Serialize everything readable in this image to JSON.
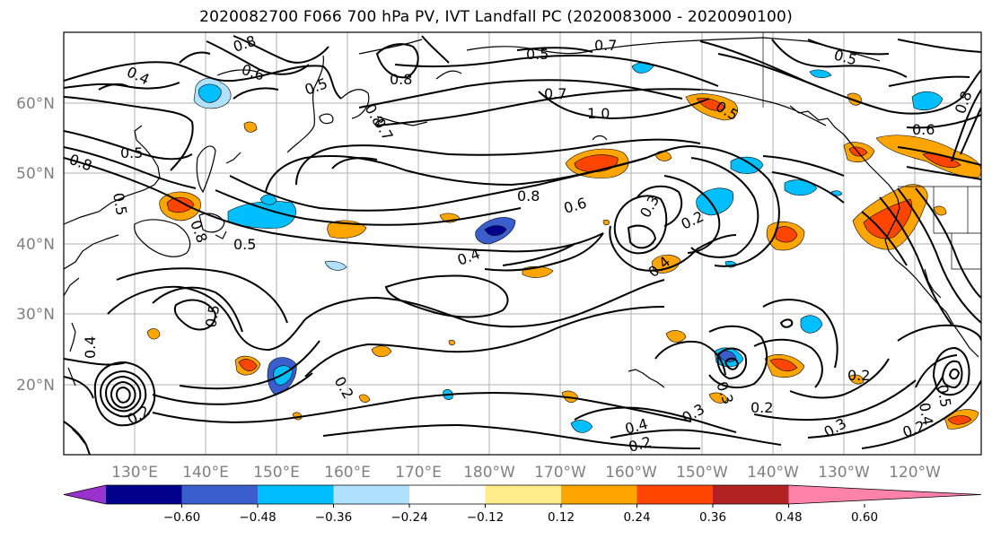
{
  "title": "2020082700 F066 700 hPa PV, IVT Landfall PC (2020083000 - 2020090100)",
  "map": {
    "lat_labels": [
      "60°N",
      "50°N",
      "40°N",
      "30°N",
      "20°N"
    ],
    "lon_labels": [
      "130°E",
      "140°E",
      "150°E",
      "160°E",
      "170°E",
      "180°W",
      "170°W",
      "160°W",
      "150°W",
      "140°W",
      "130°W",
      "120°W"
    ],
    "contour_line_color": "#000000",
    "coastline_color": "#000000",
    "contour_labels": [
      "0.8",
      "0.6",
      "0.4",
      "0.5",
      "0.8",
      "0.7",
      "0.5",
      "0.7",
      "1.0",
      "0.5",
      "0.8",
      "0.5",
      "0.8",
      "0.6",
      "0.8",
      "0.5",
      "0.8",
      "0.7",
      "0.5",
      "0.4",
      "0.3",
      "0.2",
      "0.4",
      "0.5",
      "0.4",
      "0.2",
      "0.2",
      "0.2",
      "0.4",
      "0.3",
      "0.2",
      "0.2",
      "0.3",
      "0.2",
      "0.4",
      "0.5",
      "0.8",
      "0.6",
      "0.5",
      "0.3"
    ]
  },
  "colorbar": {
    "colors": [
      "#9a32cd",
      "#00008b",
      "#3a5fcd",
      "#00bfff",
      "#b0e2ff",
      "#ffffff",
      "#ffec8b",
      "#ffa500",
      "#ff4500",
      "#b22222",
      "#ff82ab"
    ],
    "tick_labels": [
      "−0.60",
      "−0.48",
      "−0.36",
      "−0.24",
      "−0.12",
      "0.12",
      "0.24",
      "0.36",
      "0.48",
      "0.60"
    ]
  }
}
